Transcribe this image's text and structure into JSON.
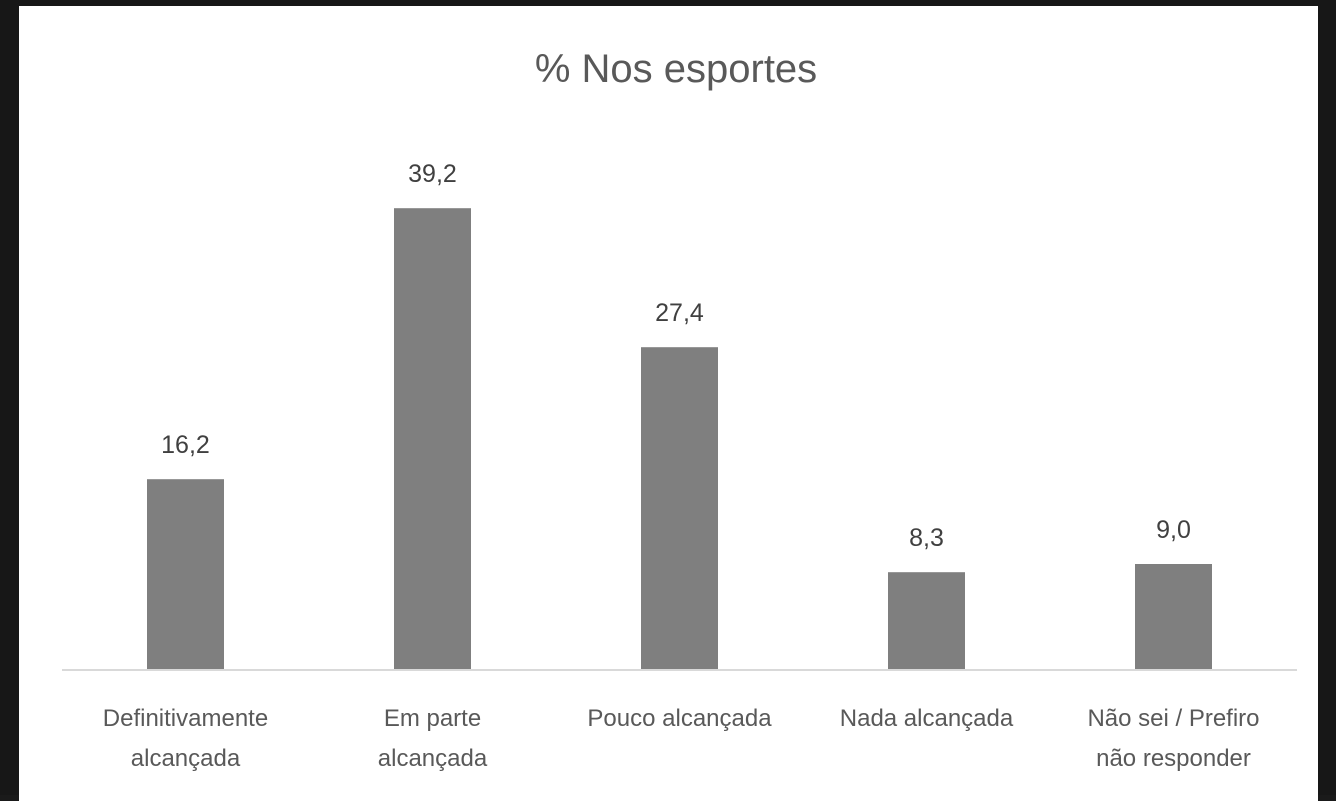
{
  "chart_data": {
    "type": "bar",
    "title": "% Nos esportes",
    "xlabel": "",
    "ylabel": "",
    "categories": [
      [
        "Definitivamente",
        "alcançada"
      ],
      [
        "Em parte",
        "alcançada"
      ],
      [
        "Pouco alcançada"
      ],
      [
        "Nada alcançada"
      ],
      [
        "Não sei / Prefiro",
        "não responder"
      ]
    ],
    "values": [
      16.2,
      39.2,
      27.4,
      8.3,
      9.0
    ],
    "value_labels": [
      "16,2",
      "39,2",
      "27,4",
      "8,3",
      "9,0"
    ],
    "ylim": [
      0,
      45
    ],
    "grid": false,
    "legend": "none",
    "bar_color": "#7f7f7f",
    "axis_color": "#d9d9d9"
  }
}
